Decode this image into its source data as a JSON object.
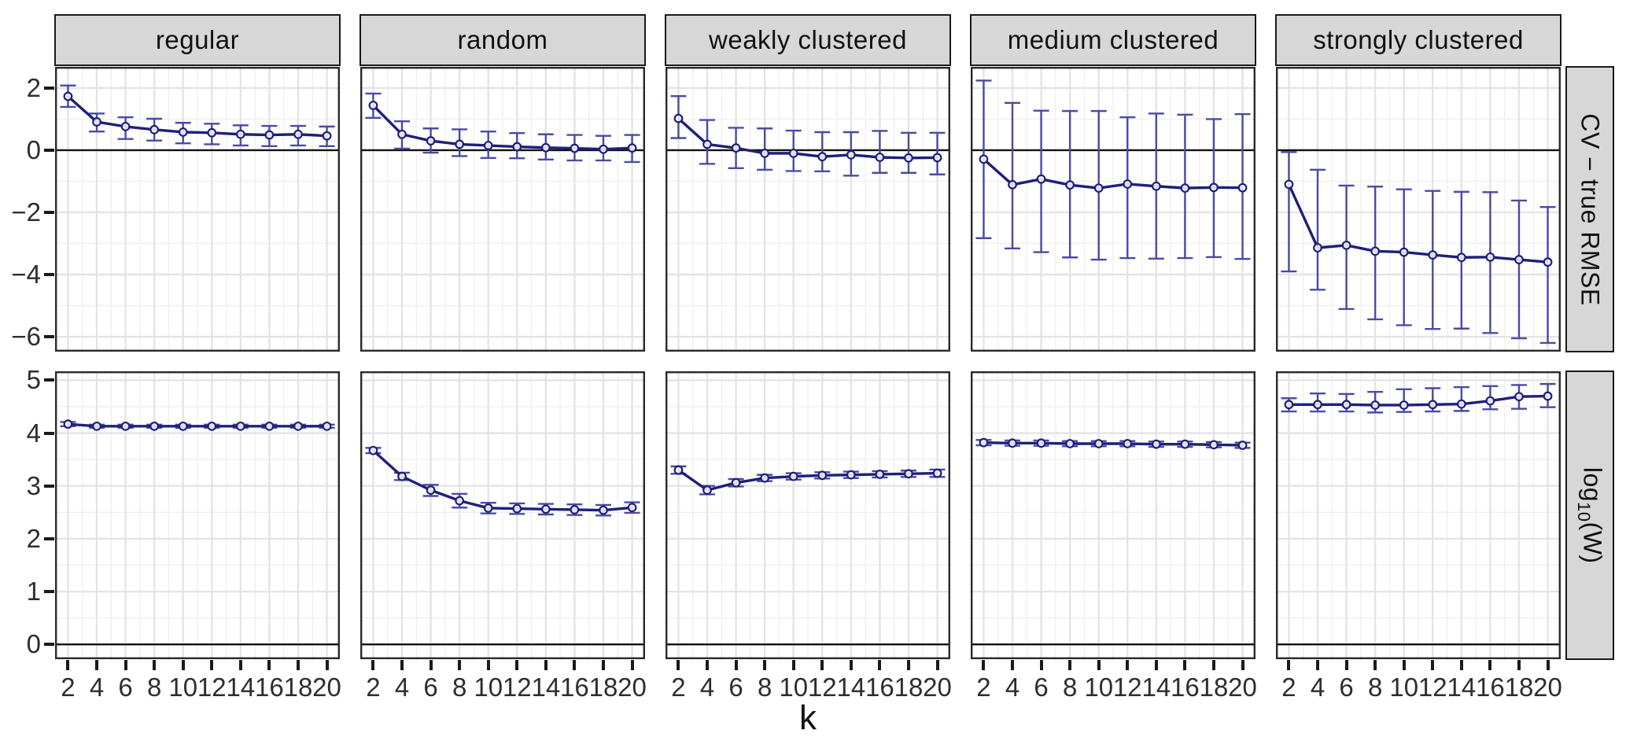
{
  "chart_data": {
    "type": "line",
    "title": "",
    "x_label": "k",
    "x_values": [
      2,
      4,
      6,
      8,
      10,
      12,
      14,
      16,
      18,
      20
    ],
    "x_tick_labels": [
      "2",
      "4",
      "6",
      "8",
      "10",
      "12",
      "14",
      "16",
      "18",
      "20"
    ],
    "minor_xticks": [
      3,
      5,
      7,
      9,
      11,
      13,
      15,
      17,
      19
    ],
    "xlim": [
      1.1,
      20.9
    ],
    "legend": "none",
    "grid": "on",
    "col_facets": [
      "regular",
      "random",
      "weakly clustered",
      "medium clustered",
      "strongly clustered"
    ],
    "row_facets": [
      {
        "label": "CV − true RMSE",
        "label_parts": {
          "prefix": "CV − true RMSE",
          "sub": "",
          "suffix": ""
        },
        "ylim": [
          -6.48,
          2.68
        ],
        "yticks": [
          2,
          0,
          -2,
          -4,
          -6
        ],
        "ytick_labels": [
          "2",
          "0",
          "−2",
          "−4",
          "−6"
        ],
        "minor_yticks": [
          1,
          -1,
          -3,
          -5
        ],
        "hline": 0
      },
      {
        "label": "log10(W)",
        "label_parts": {
          "prefix": "log",
          "sub": "10",
          "suffix": "(W)"
        },
        "ylim": [
          -0.28,
          5.17
        ],
        "yticks": [
          5,
          4,
          3,
          2,
          1,
          0
        ],
        "ytick_labels": [
          "5",
          "4",
          "3",
          "2",
          "1",
          "0"
        ],
        "minor_yticks": [
          4.5,
          3.5,
          2.5,
          1.5,
          0.5
        ],
        "hline": 0
      }
    ],
    "panels": [
      {
        "row": 0,
        "col": 0,
        "mean": [
          1.73,
          0.91,
          0.76,
          0.66,
          0.58,
          0.56,
          0.51,
          0.49,
          0.51,
          0.46
        ],
        "lower": [
          1.39,
          0.6,
          0.36,
          0.31,
          0.22,
          0.19,
          0.15,
          0.13,
          0.15,
          0.13
        ],
        "upper": [
          2.08,
          1.18,
          1.06,
          1.01,
          0.88,
          0.85,
          0.8,
          0.78,
          0.78,
          0.76
        ]
      },
      {
        "row": 0,
        "col": 1,
        "mean": [
          1.44,
          0.51,
          0.3,
          0.19,
          0.15,
          0.11,
          0.08,
          0.06,
          0.03,
          0.07
        ],
        "lower": [
          1.04,
          0.05,
          -0.08,
          -0.19,
          -0.25,
          -0.26,
          -0.3,
          -0.33,
          -0.33,
          -0.38
        ],
        "upper": [
          1.82,
          0.93,
          0.7,
          0.67,
          0.6,
          0.55,
          0.51,
          0.49,
          0.46,
          0.49
        ]
      },
      {
        "row": 0,
        "col": 2,
        "mean": [
          1.02,
          0.19,
          0.07,
          -0.1,
          -0.1,
          -0.21,
          -0.15,
          -0.23,
          -0.25,
          -0.24
        ],
        "lower": [
          0.39,
          -0.44,
          -0.58,
          -0.63,
          -0.67,
          -0.68,
          -0.82,
          -0.73,
          -0.73,
          -0.78
        ],
        "upper": [
          1.74,
          0.97,
          0.72,
          0.7,
          0.63,
          0.58,
          0.58,
          0.62,
          0.56,
          0.56
        ]
      },
      {
        "row": 0,
        "col": 3,
        "mean": [
          -0.29,
          -1.11,
          -0.93,
          -1.12,
          -1.22,
          -1.09,
          -1.16,
          -1.22,
          -1.2,
          -1.21
        ],
        "lower": [
          -2.83,
          -3.16,
          -3.28,
          -3.45,
          -3.52,
          -3.47,
          -3.49,
          -3.47,
          -3.44,
          -3.5
        ],
        "upper": [
          2.24,
          1.52,
          1.27,
          1.26,
          1.26,
          1.06,
          1.18,
          1.14,
          1.0,
          1.16
        ]
      },
      {
        "row": 0,
        "col": 4,
        "mean": [
          -1.1,
          -3.14,
          -3.06,
          -3.25,
          -3.28,
          -3.37,
          -3.45,
          -3.44,
          -3.52,
          -3.6
        ],
        "lower": [
          -3.9,
          -4.49,
          -5.11,
          -5.44,
          -5.63,
          -5.75,
          -5.74,
          -5.88,
          -6.05,
          -6.2
        ],
        "upper": [
          -0.06,
          -0.63,
          -1.14,
          -1.17,
          -1.26,
          -1.31,
          -1.34,
          -1.35,
          -1.62,
          -1.83
        ]
      },
      {
        "row": 1,
        "col": 0,
        "mean": [
          4.17,
          4.13,
          4.13,
          4.13,
          4.13,
          4.13,
          4.13,
          4.13,
          4.13,
          4.13
        ],
        "lower": [
          4.13,
          4.1,
          4.1,
          4.1,
          4.1,
          4.1,
          4.1,
          4.1,
          4.1,
          4.1
        ],
        "upper": [
          4.21,
          4.16,
          4.16,
          4.16,
          4.16,
          4.16,
          4.16,
          4.16,
          4.16,
          4.16
        ]
      },
      {
        "row": 1,
        "col": 1,
        "mean": [
          3.67,
          3.18,
          2.92,
          2.72,
          2.58,
          2.57,
          2.56,
          2.55,
          2.54,
          2.59
        ],
        "lower": [
          3.62,
          3.11,
          2.81,
          2.59,
          2.48,
          2.47,
          2.46,
          2.45,
          2.44,
          2.49
        ],
        "upper": [
          3.72,
          3.25,
          3.02,
          2.85,
          2.68,
          2.67,
          2.66,
          2.65,
          2.64,
          2.69
        ]
      },
      {
        "row": 1,
        "col": 2,
        "mean": [
          3.3,
          2.92,
          3.06,
          3.15,
          3.18,
          3.2,
          3.21,
          3.22,
          3.23,
          3.24
        ],
        "lower": [
          3.23,
          2.84,
          2.99,
          3.09,
          3.12,
          3.14,
          3.15,
          3.16,
          3.17,
          3.17
        ],
        "upper": [
          3.37,
          3.0,
          3.13,
          3.21,
          3.24,
          3.26,
          3.27,
          3.28,
          3.29,
          3.31
        ]
      },
      {
        "row": 1,
        "col": 3,
        "mean": [
          3.82,
          3.81,
          3.81,
          3.8,
          3.8,
          3.8,
          3.79,
          3.79,
          3.78,
          3.77
        ],
        "lower": [
          3.77,
          3.76,
          3.76,
          3.75,
          3.75,
          3.75,
          3.74,
          3.74,
          3.73,
          3.72
        ],
        "upper": [
          3.87,
          3.86,
          3.86,
          3.85,
          3.85,
          3.85,
          3.84,
          3.84,
          3.83,
          3.82
        ]
      },
      {
        "row": 1,
        "col": 4,
        "mean": [
          4.54,
          4.54,
          4.54,
          4.53,
          4.53,
          4.54,
          4.55,
          4.61,
          4.69,
          4.7
        ],
        "lower": [
          4.41,
          4.41,
          4.41,
          4.39,
          4.4,
          4.41,
          4.42,
          4.45,
          4.46,
          4.49
        ],
        "upper": [
          4.66,
          4.75,
          4.74,
          4.78,
          4.83,
          4.85,
          4.87,
          4.89,
          4.91,
          4.93
        ]
      }
    ],
    "style": {
      "line_color": "#1f1f7a",
      "errorbar_color": "#4a4aa5",
      "marker_fill": "#ffffff",
      "strip_bg": "#d7d7d7",
      "grid_major": "#e4e4e4",
      "grid_minor": "#f0f0f0",
      "panel_border": "#2a2a2a",
      "axis_text": "#2e2e2e",
      "hline_color": "#111111"
    }
  }
}
